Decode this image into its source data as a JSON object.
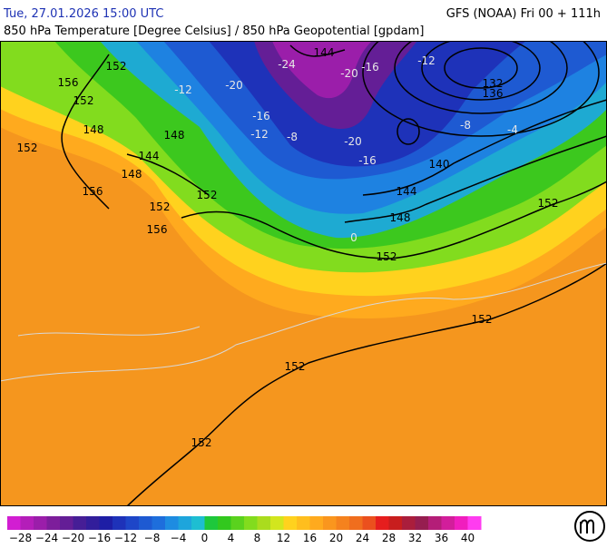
{
  "header": {
    "datetime": "Tue, 27.01.2026 15:00 UTC",
    "model": "GFS (NOAA) Fri 00 + 111h",
    "subtitle": "850 hPa Temperature [Degree Celsius] / 850 hPa Geopotential [gpdam]"
  },
  "map": {
    "isohypse_labels": [
      152,
      156,
      152,
      148,
      152,
      144,
      148,
      148,
      156,
      152,
      152,
      156,
      144,
      132,
      136,
      140,
      144,
      148,
      152,
      152,
      152,
      152,
      152
    ],
    "isotherm_labels": [
      -24,
      -20,
      -16,
      -12,
      -16,
      -20,
      -12,
      -8,
      -20,
      -16,
      -8,
      -4,
      -12,
      0
    ],
    "colorbar": {
      "range": [
        -30,
        42
      ],
      "colors": [
        "#d21ed2",
        "#b41eb9",
        "#9b1eaa",
        "#7d1e9b",
        "#641e96",
        "#461e96",
        "#321e9b",
        "#1e1ea5",
        "#1e32b9",
        "#1e46c8",
        "#1e5ad2",
        "#1e6edc",
        "#1e8ce1",
        "#1ea5dc",
        "#1ebed2",
        "#1ec83c",
        "#32c81e",
        "#5ad21e",
        "#82dc1e",
        "#aadc1e",
        "#d2e61e",
        "#ffd21e",
        "#ffbe1e",
        "#ffaa1e",
        "#fa961e",
        "#f5821e",
        "#f06e1e",
        "#eb501e",
        "#e61e1e",
        "#c81e1e",
        "#aa1e3c",
        "#961e50",
        "#b41e78",
        "#d21e9b",
        "#f01ebe",
        "#ff3cf0"
      ],
      "ticks": [
        {
          "value": -28,
          "label": "−28"
        },
        {
          "value": -24,
          "label": "−24"
        },
        {
          "value": -20,
          "label": "−20"
        },
        {
          "value": -16,
          "label": "−16"
        },
        {
          "value": -12,
          "label": "−12"
        },
        {
          "value": -8,
          "label": "−8"
        },
        {
          "value": -4,
          "label": "−4"
        },
        0,
        4,
        8,
        12,
        16,
        20,
        24,
        28,
        32,
        36,
        40
      ]
    }
  }
}
